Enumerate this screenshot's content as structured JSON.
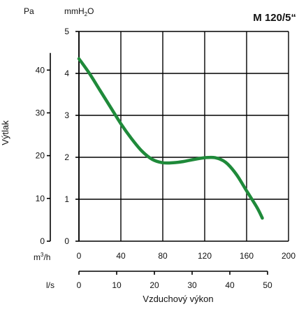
{
  "chart_data": {
    "type": "line",
    "title": "M 120/5“",
    "ylabel": "Výtlak",
    "xlabel": "Vzduchový výkon",
    "y_unit_pa": "Pa",
    "y_unit_mmh2o": "mmH",
    "y_unit_mmh2o_sub": "2",
    "y_unit_mmh2o_tail": "O",
    "x_unit_m3h": "m",
    "x_unit_m3h_sup": "3",
    "x_unit_m3h_tail": "/h",
    "x_unit_ls": "l/s",
    "x_m3h_ticks": [
      "0",
      "40",
      "80",
      "120",
      "160",
      "200"
    ],
    "x_ls_ticks": [
      "0",
      "10",
      "20",
      "30",
      "40",
      "50"
    ],
    "y_mmh2o_ticks": [
      "0",
      "1",
      "2",
      "3",
      "4",
      "5"
    ],
    "y_pa_ticks": [
      "0",
      "10",
      "20",
      "30",
      "40"
    ],
    "xlim": [
      0,
      200
    ],
    "ylim": [
      0,
      5
    ],
    "grid": true,
    "curve_color": "#1f8a3a",
    "series": [
      {
        "x": [
          0,
          10,
          20,
          30,
          40,
          50,
          60,
          70,
          80,
          90,
          100,
          110,
          120,
          130,
          140,
          150,
          160,
          170,
          175
        ],
        "y": [
          4.35,
          4.0,
          3.6,
          3.2,
          2.8,
          2.45,
          2.15,
          1.95,
          1.87,
          1.87,
          1.9,
          1.95,
          1.99,
          1.99,
          1.88,
          1.6,
          1.2,
          0.8,
          0.55
        ]
      }
    ]
  }
}
